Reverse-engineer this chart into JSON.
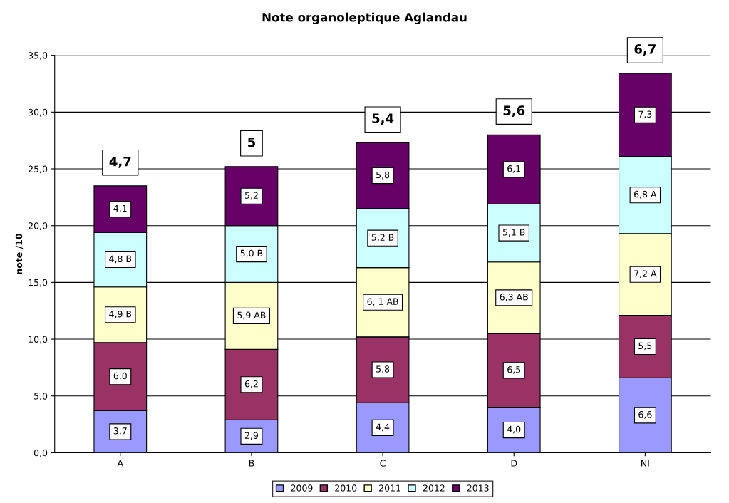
{
  "chart_data": {
    "type": "bar",
    "stacked": true,
    "title": "Note organoleptique Aglandau",
    "ylabel": "note /10",
    "categories": [
      "A",
      "B",
      "C",
      "D",
      "NI"
    ],
    "series": [
      {
        "name": "2009",
        "color": "#9999ff",
        "values": [
          3.7,
          2.9,
          4.4,
          4.0,
          6.6
        ],
        "value_labels": [
          "3,7",
          "2,9",
          "4,4",
          "4,0",
          "6,6"
        ]
      },
      {
        "name": "2010",
        "color": "#993366",
        "values": [
          6.0,
          6.2,
          5.8,
          6.5,
          5.5
        ],
        "value_labels": [
          "6,0",
          "6,2",
          "5,8",
          "6,5",
          "5,5"
        ]
      },
      {
        "name": "2011",
        "color": "#ffffcc",
        "values": [
          4.9,
          5.9,
          6.1,
          6.3,
          7.2
        ],
        "value_labels": [
          "4,9 B",
          "5,9 AB",
          "6, 1 AB",
          "6,3 AB",
          "7,2 A"
        ]
      },
      {
        "name": "2012",
        "color": "#ccffff",
        "values": [
          4.8,
          5.0,
          5.2,
          5.1,
          6.8
        ],
        "value_labels": [
          "4,8 B",
          "5,0 B",
          "5,2 B",
          "5,1 B",
          "6,8 A"
        ]
      },
      {
        "name": "2013",
        "color": "#660066",
        "values": [
          4.1,
          5.2,
          5.8,
          6.1,
          7.3
        ],
        "value_labels": [
          "4,1",
          "5,2",
          "5,8",
          "6,1",
          "7,3"
        ]
      }
    ],
    "annotations": [
      {
        "text": "4,7",
        "x": "A",
        "y": 23.5
      },
      {
        "text": "5",
        "x": "B",
        "y": 25.2
      },
      {
        "text": "5,4",
        "x": "C",
        "y": 27.3
      },
      {
        "text": "5,6",
        "x": "D",
        "y": 28.0
      },
      {
        "text": "6,7",
        "x": "NI",
        "y": 33.4
      }
    ],
    "ylim": [
      0,
      35
    ],
    "yticks": [
      {
        "value": 0,
        "label": "0,0"
      },
      {
        "value": 5,
        "label": "5,0"
      },
      {
        "value": 10,
        "label": "10,0"
      },
      {
        "value": 15,
        "label": "15,0"
      },
      {
        "value": 20,
        "label": "20,0"
      },
      {
        "value": 25,
        "label": "25,0"
      },
      {
        "value": 30,
        "label": "30,0"
      },
      {
        "value": 35,
        "label": "35,0"
      }
    ],
    "grid": "y",
    "legend": "bottom"
  }
}
